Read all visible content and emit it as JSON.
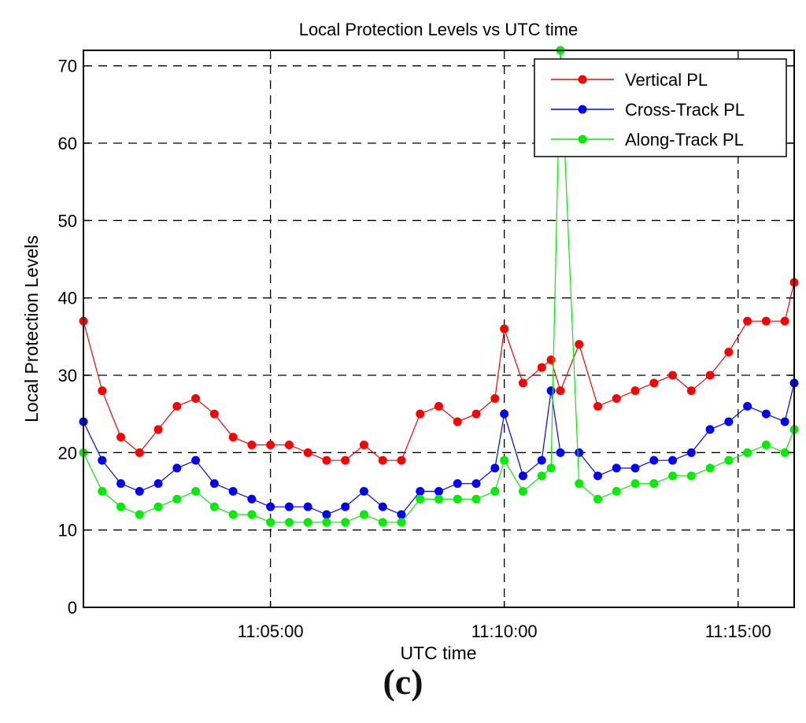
{
  "caption": "(c)",
  "chart_data": {
    "type": "line",
    "title": "Local Protection Levels vs UTC time",
    "xlabel": "UTC time",
    "ylabel": "Local Protection Levels",
    "xlim_minutes": [
      1.0,
      16.2
    ],
    "ylim": [
      0,
      72
    ],
    "yticks": [
      0,
      10,
      20,
      30,
      40,
      50,
      60,
      70
    ],
    "xticks": [
      {
        "minutes": 5,
        "label": "11:05:00"
      },
      {
        "minutes": 10,
        "label": "11:10:00"
      },
      {
        "minutes": 15,
        "label": "11:15:00"
      }
    ],
    "grid": true,
    "legend_position": "top-right",
    "x_minutes": [
      1.0,
      1.4,
      1.8,
      2.2,
      2.6,
      3.0,
      3.4,
      3.8,
      4.2,
      4.6,
      5.0,
      5.4,
      5.8,
      6.2,
      6.6,
      7.0,
      7.4,
      7.8,
      8.2,
      8.6,
      9.0,
      9.4,
      9.8,
      10.0,
      10.4,
      10.8,
      11.0,
      11.2,
      11.6,
      12.0,
      12.4,
      12.8,
      13.2,
      13.6,
      14.0,
      14.4,
      14.8,
      15.2,
      15.6,
      16.0,
      16.2
    ],
    "series": [
      {
        "name": "Vertical PL",
        "color": "#ff0000",
        "values": [
          37,
          28,
          22,
          20,
          23,
          26,
          27,
          25,
          22,
          21,
          21,
          21,
          20,
          19,
          19,
          21,
          19,
          19,
          25,
          26,
          24,
          25,
          27,
          36,
          29,
          31,
          32,
          28,
          34,
          26,
          27,
          28,
          29,
          30,
          28,
          30,
          33,
          37,
          37,
          37,
          42
        ]
      },
      {
        "name": "Cross-Track PL",
        "color": "#0000ff",
        "values": [
          24,
          19,
          16,
          15,
          16,
          18,
          19,
          16,
          15,
          14,
          13,
          13,
          13,
          12,
          13,
          15,
          13,
          12,
          15,
          15,
          16,
          16,
          18,
          25,
          17,
          19,
          28,
          20,
          20,
          17,
          18,
          18,
          19,
          19,
          20,
          23,
          24,
          26,
          25,
          24,
          29
        ]
      },
      {
        "name": "Along-Track PL",
        "color": "#00ee00",
        "values": [
          20,
          15,
          13,
          12,
          13,
          14,
          15,
          13,
          12,
          12,
          11,
          11,
          11,
          11,
          11,
          12,
          11,
          11,
          14,
          14,
          14,
          14,
          15,
          19,
          15,
          17,
          18,
          72,
          16,
          14,
          15,
          16,
          16,
          17,
          17,
          18,
          19,
          20,
          21,
          20,
          23
        ]
      }
    ]
  }
}
